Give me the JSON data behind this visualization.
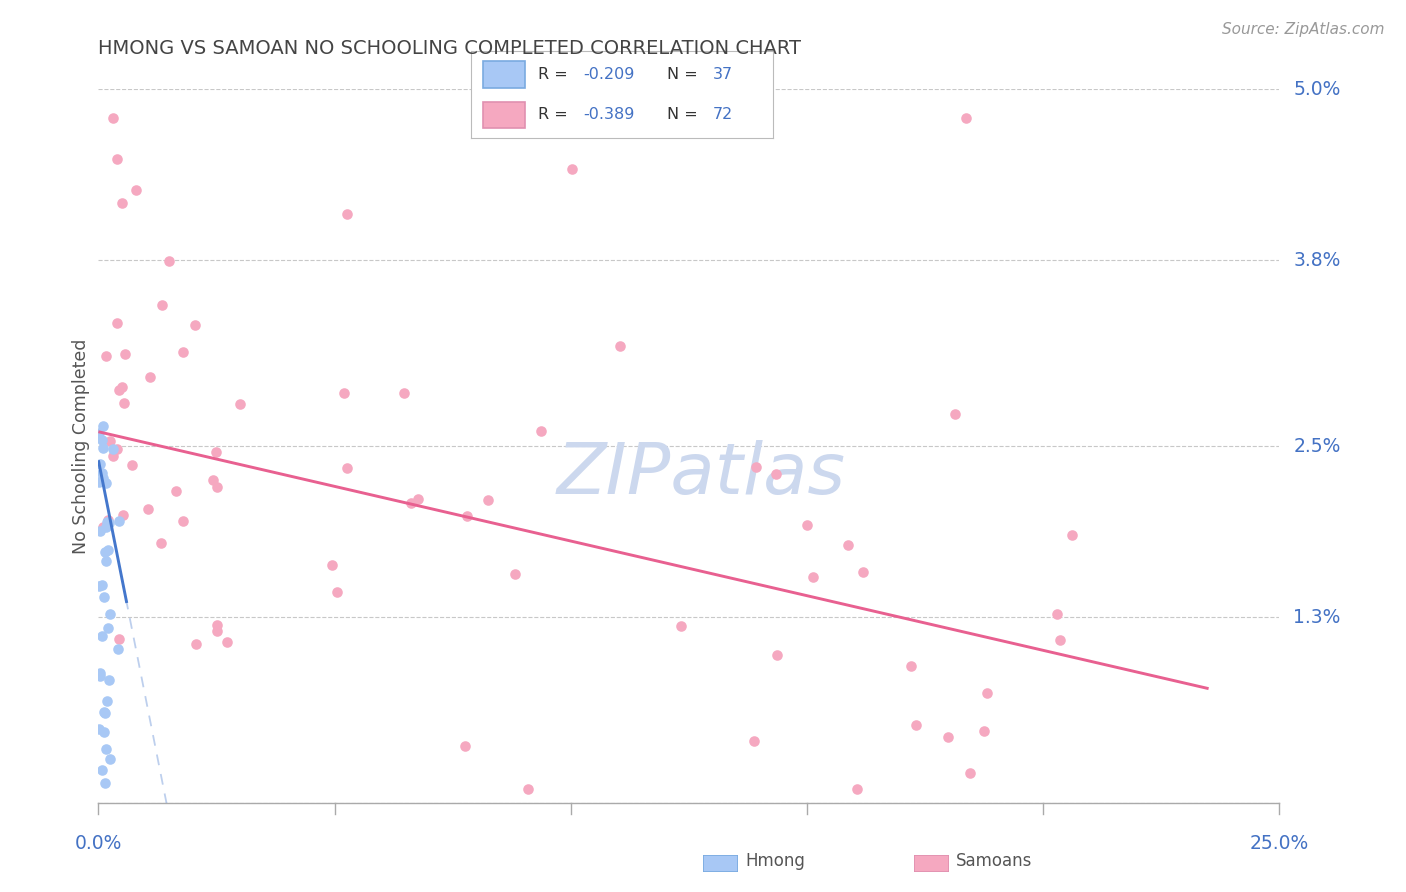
{
  "title": "HMONG VS SAMOAN NO SCHOOLING COMPLETED CORRELATION CHART",
  "source": "Source: ZipAtlas.com",
  "ylabel": "No Schooling Completed",
  "xlim": [
    0.0,
    0.25
  ],
  "ylim": [
    0.0,
    0.05
  ],
  "ytick_vals": [
    0.0,
    0.013,
    0.025,
    0.038,
    0.05
  ],
  "ytick_labels": [
    "",
    "1.3%",
    "2.5%",
    "3.8%",
    "5.0%"
  ],
  "xtick_labels": [
    "0.0%",
    "25.0%"
  ],
  "hmong_R": "-0.209",
  "hmong_N": "37",
  "samoan_R": "-0.389",
  "samoan_N": "72",
  "hmong_scatter_color": "#a8c8f5",
  "hmong_scatter_edge": "#7aaae0",
  "hmong_line_color": "#4477cc",
  "samoan_scatter_color": "#f5a8c0",
  "samoan_scatter_edge": "#e090b0",
  "samoan_line_color": "#e86090",
  "grid_color": "#c8c8c8",
  "title_color": "#444444",
  "axis_label_color": "#4472c4",
  "source_color": "#999999",
  "watermark_color": "#ccd8ee",
  "background": "#ffffff",
  "legend_text_color": "#333333",
  "legend_value_color": "#4472c4",
  "samoan_line_start_y": 0.026,
  "samoan_line_end_y": 0.008,
  "hmong_line_start_y": 0.024,
  "hmong_line_end_y": 0.013
}
